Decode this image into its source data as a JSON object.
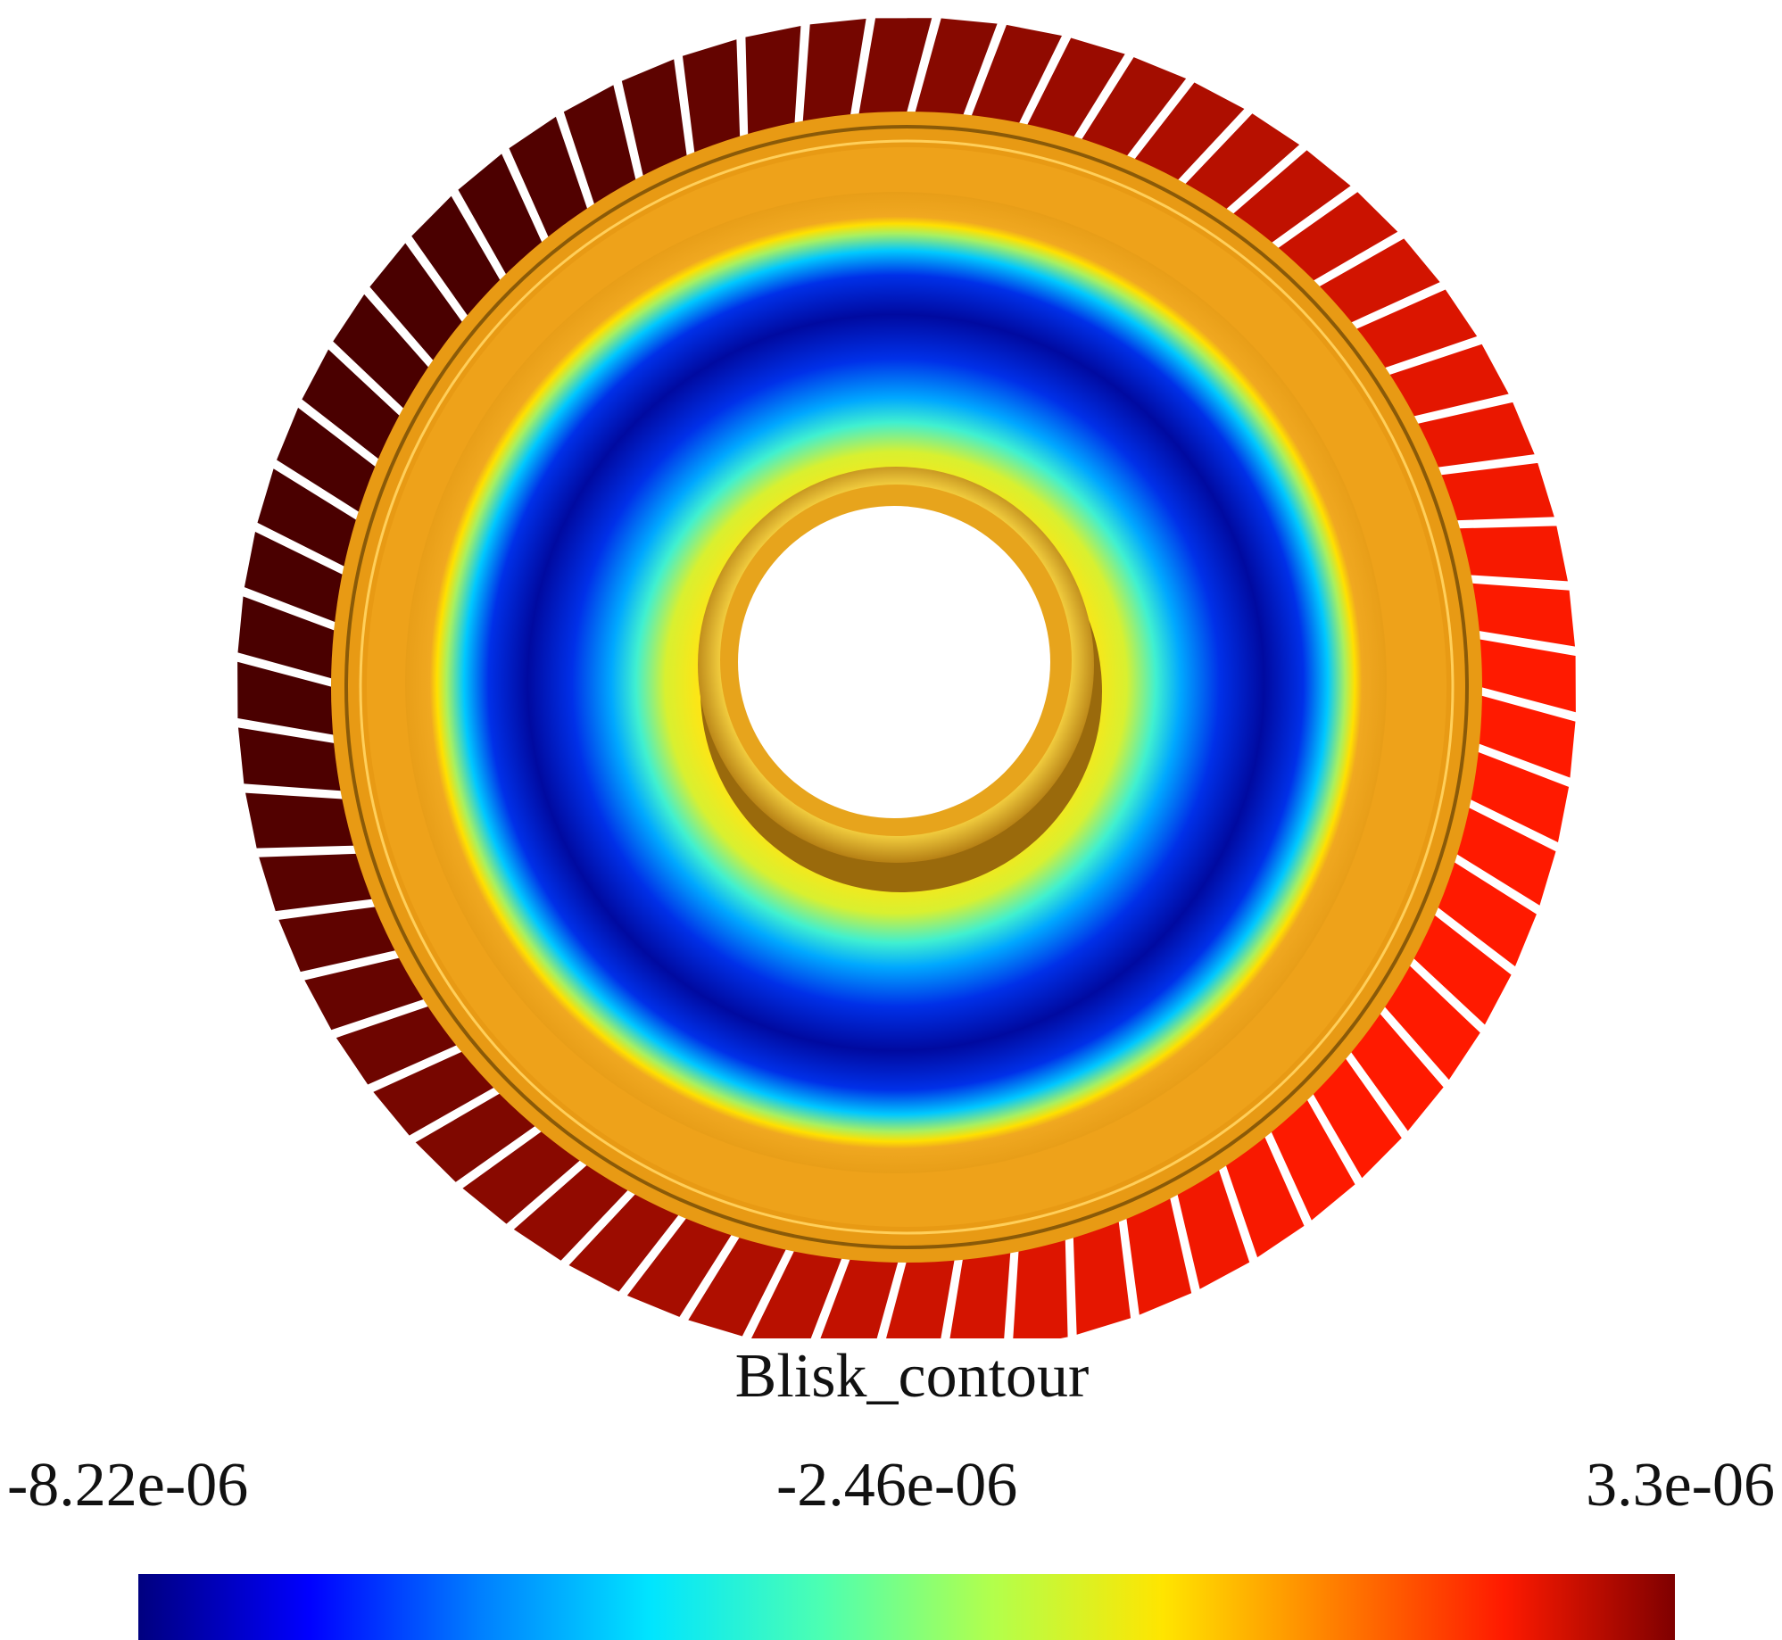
{
  "viewer": {
    "model": "blisk",
    "colormap": "jet",
    "blade_count": 64
  },
  "legend": {
    "title": "Blisk_contour",
    "min_label": "-8.22e-06",
    "mid_label": "-2.46e-06",
    "max_label": "3.3e-06",
    "colors": [
      "#00007f",
      "#0000ff",
      "#007fff",
      "#00e5ff",
      "#4cffb2",
      "#b2ff4c",
      "#ffe500",
      "#ff7f00",
      "#ff1a00",
      "#7f0000"
    ]
  },
  "field": {
    "disk_inner_color": "#e8a21a",
    "blade_cold_color": "#4a0000",
    "blade_hot_color": "#ff1a00"
  }
}
